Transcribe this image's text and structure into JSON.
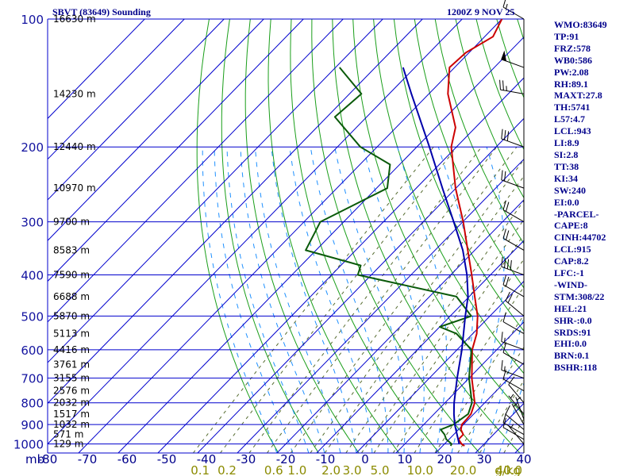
{
  "header": {
    "station": "SBVT (83649) Sounding",
    "time": "1200Z  9 NOV 25"
  },
  "indices": [
    "WMO:83649",
    "TP:91",
    "FRZ:578",
    "WB0:586",
    "PW:2.08",
    "RH:89.1",
    "MAXT:27.8",
    "TH:5741",
    "L57:4.7",
    "LCL:943",
    "LI:8.9",
    "SI:2.8",
    "TT:38",
    "KI:34",
    "SW:240",
    "EI:0.0",
    "-PARCEL-",
    "CAPE:8",
    "CINH:44702",
    "LCL:915",
    "CAP:8.2",
    "LFC:-1",
    "-WIND-",
    "STM:308/22",
    "HEL:21",
    "SHR-:0.0",
    "SRDS:91",
    "EHI:0.0",
    "BRN:0.1",
    "BSHR:118"
  ],
  "colors": {
    "background": "#ffffff",
    "isobar_grid": "#0000cd",
    "isotherm_grid": "#0000cd",
    "dry_adiabat": "#1a9e1a",
    "moist_adiabat": "#1e90ff",
    "mixing_ratio": "#556b2f",
    "temperature": "#cc0000",
    "dewpoint": "#0a5a0a",
    "parcel": "#0000aa",
    "wind_barb": "#000000",
    "text": "#00008b"
  },
  "chart_data": {
    "type": "line",
    "title": "SBVT (83649) Sounding",
    "subtitle": "1200Z  9 NOV 25",
    "xlabel": "",
    "ylabel": "mb",
    "xlim": [
      -80,
      40
    ],
    "ylim": [
      1050,
      100
    ],
    "y_scale": "log",
    "x_ticks": [
      -80,
      -70,
      -60,
      -50,
      -40,
      -30,
      -20,
      -10,
      0,
      10,
      20,
      30,
      40
    ],
    "x_tick_labels": [
      "-80",
      "-70",
      "-60",
      "-50",
      "-40",
      "-30",
      "-20",
      "-10",
      "0",
      "10",
      "20",
      "30",
      "40"
    ],
    "y_ticks": [
      100,
      200,
      300,
      400,
      500,
      600,
      700,
      800,
      900,
      1000
    ],
    "y_tick_labels": [
      "100",
      "200",
      "300",
      "400",
      "500",
      "600",
      "700",
      "800",
      "900",
      "1000"
    ],
    "height_labels": [
      {
        "p": 100,
        "text": "16630 m"
      },
      {
        "p": 150,
        "text": "14230 m"
      },
      {
        "p": 200,
        "text": "12440 m"
      },
      {
        "p": 250,
        "text": "10970 m"
      },
      {
        "p": 300,
        "text": "9700 m"
      },
      {
        "p": 350,
        "text": "8583 m"
      },
      {
        "p": 400,
        "text": "7590 m"
      },
      {
        "p": 450,
        "text": "6688 m"
      },
      {
        "p": 500,
        "text": "5870 m"
      },
      {
        "p": 550,
        "text": "5113 m"
      },
      {
        "p": 600,
        "text": "4416 m"
      },
      {
        "p": 650,
        "text": "3761 m"
      },
      {
        "p": 700,
        "text": "3155 m"
      },
      {
        "p": 750,
        "text": "2576 m"
      },
      {
        "p": 800,
        "text": "2032 m"
      },
      {
        "p": 850,
        "text": "1517 m"
      },
      {
        "p": 900,
        "text": "1032 m"
      },
      {
        "p": 950,
        "text": "571 m"
      },
      {
        "p": 1000,
        "text": "129 m"
      }
    ],
    "mixing_ratio_labels": [
      {
        "w": 0.1,
        "text": "0.1"
      },
      {
        "w": 0.2,
        "text": "0.2"
      },
      {
        "w": 0.6,
        "text": "0.6"
      },
      {
        "w": 1.0,
        "text": "1.0"
      },
      {
        "w": 2.0,
        "text": "2.0"
      },
      {
        "w": 3.0,
        "text": "3.0"
      },
      {
        "w": 5.0,
        "text": "5.0"
      },
      {
        "w": 10.0,
        "text": "10.0"
      },
      {
        "w": 20.0,
        "text": "20.0"
      },
      {
        "w": 40.0,
        "text": "40.0"
      }
    ],
    "mixing_ratio_unit": "g/kg",
    "series": [
      {
        "key": "temperature",
        "points": [
          {
            "p": 1010,
            "t": 25.5
          },
          {
            "p": 1000,
            "t": 24.3
          },
          {
            "p": 975,
            "t": 22.4
          },
          {
            "p": 950,
            "t": 22.4
          },
          {
            "p": 925,
            "t": 20.6
          },
          {
            "p": 900,
            "t": 19.6
          },
          {
            "p": 875,
            "t": 19.5
          },
          {
            "p": 850,
            "t": 19.3
          },
          {
            "p": 800,
            "t": 17.5
          },
          {
            "p": 700,
            "t": 10.7
          },
          {
            "p": 600,
            "t": 3.8
          },
          {
            "p": 550,
            "t": 1.0
          },
          {
            "p": 500,
            "t": -3.1
          },
          {
            "p": 450,
            "t": -8.6
          },
          {
            "p": 400,
            "t": -14.7
          },
          {
            "p": 300,
            "t": -29.9
          },
          {
            "p": 250,
            "t": -40.1
          },
          {
            "p": 200,
            "t": -51.3
          },
          {
            "p": 180,
            "t": -55.0
          },
          {
            "p": 150,
            "t": -65.2
          },
          {
            "p": 130,
            "t": -71.3
          },
          {
            "p": 120,
            "t": -70.8
          },
          {
            "p": 110,
            "t": -67.9
          },
          {
            "p": 100,
            "t": -70.0
          }
        ]
      },
      {
        "key": "dewpoint",
        "points": [
          {
            "p": 1010,
            "t": 22.0
          },
          {
            "p": 1000,
            "t": 21.8
          },
          {
            "p": 975,
            "t": 19.3
          },
          {
            "p": 950,
            "t": 17.7
          },
          {
            "p": 925,
            "t": 15.5
          },
          {
            "p": 900,
            "t": 17.5
          },
          {
            "p": 850,
            "t": 18.6
          },
          {
            "p": 800,
            "t": 16.8
          },
          {
            "p": 700,
            "t": 10.0
          },
          {
            "p": 600,
            "t": 3.6
          },
          {
            "p": 550,
            "t": -4.1
          },
          {
            "p": 530,
            "t": -10.0
          },
          {
            "p": 500,
            "t": -4.7
          },
          {
            "p": 450,
            "t": -13.2
          },
          {
            "p": 400,
            "t": -43.4
          },
          {
            "p": 380,
            "t": -45.0
          },
          {
            "p": 350,
            "t": -62.6
          },
          {
            "p": 300,
            "t": -65.9
          },
          {
            "p": 250,
            "t": -57.3
          },
          {
            "p": 220,
            "t": -62.4
          },
          {
            "p": 200,
            "t": -74.2
          },
          {
            "p": 170,
            "t": -88.0
          },
          {
            "p": 150,
            "t": -87.0
          },
          {
            "p": 130,
            "t": -99.0
          }
        ]
      },
      {
        "key": "parcel",
        "points": [
          {
            "p": 1000,
            "t": 23.7
          },
          {
            "p": 900,
            "t": 17.8
          },
          {
            "p": 850,
            "t": 15.0
          },
          {
            "p": 800,
            "t": 12.3
          },
          {
            "p": 700,
            "t": 7.0
          },
          {
            "p": 600,
            "t": 1.2
          },
          {
            "p": 500,
            "t": -6.2
          },
          {
            "p": 450,
            "t": -10.3
          },
          {
            "p": 400,
            "t": -15.9
          },
          {
            "p": 350,
            "t": -23.0
          },
          {
            "p": 300,
            "t": -32.3
          },
          {
            "p": 250,
            "t": -43.4
          },
          {
            "p": 200,
            "t": -56.8
          },
          {
            "p": 150,
            "t": -74.4
          },
          {
            "p": 130,
            "t": -83.0
          }
        ]
      }
    ],
    "wind_barbs": [
      {
        "p": 1000,
        "dir": 320,
        "spd": 5
      },
      {
        "p": 975,
        "dir": 300,
        "spd": 10
      },
      {
        "p": 950,
        "dir": 300,
        "spd": 10
      },
      {
        "p": 925,
        "dir": 310,
        "spd": 10
      },
      {
        "p": 900,
        "dir": 330,
        "spd": 5
      },
      {
        "p": 875,
        "dir": 340,
        "spd": 5
      },
      {
        "p": 850,
        "dir": 320,
        "spd": 5
      },
      {
        "p": 800,
        "dir": 320,
        "spd": 10
      },
      {
        "p": 750,
        "dir": 300,
        "spd": 10
      },
      {
        "p": 700,
        "dir": 290,
        "spd": 15
      },
      {
        "p": 650,
        "dir": 300,
        "spd": 10
      },
      {
        "p": 600,
        "dir": 290,
        "spd": 15
      },
      {
        "p": 550,
        "dir": 300,
        "spd": 10
      },
      {
        "p": 500,
        "dir": 310,
        "spd": 20
      },
      {
        "p": 450,
        "dir": 300,
        "spd": 20
      },
      {
        "p": 400,
        "dir": 290,
        "spd": 40
      },
      {
        "p": 350,
        "dir": 300,
        "spd": 20
      },
      {
        "p": 300,
        "dir": 300,
        "spd": 20
      },
      {
        "p": 250,
        "dir": 290,
        "spd": 20
      },
      {
        "p": 200,
        "dir": 290,
        "spd": 30
      },
      {
        "p": 150,
        "dir": 280,
        "spd": 25
      },
      {
        "p": 130,
        "dir": 290,
        "spd": 50
      },
      {
        "p": 100,
        "dir": 300,
        "spd": 15
      }
    ]
  }
}
